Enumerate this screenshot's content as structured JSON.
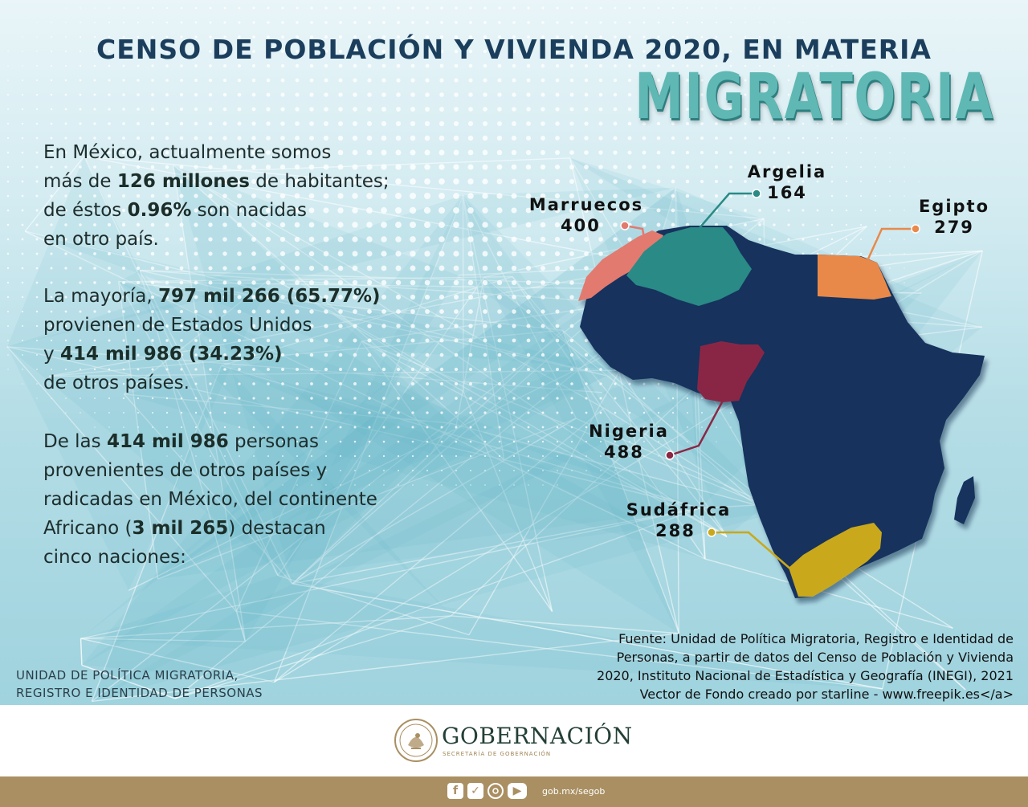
{
  "header": {
    "title": "CENSO DE POBLACIÓN Y VIVIENDA 2020, EN MATERIA",
    "title_highlight": "MIGRATORIA"
  },
  "paragraphs": [
    {
      "parts": [
        {
          "text": "En México",
          "bold": false
        },
        {
          "text": ", actualmente somos",
          "bold": false
        },
        {
          "text": "\nmás de ",
          "bold": false
        },
        {
          "text": "126 millones",
          "bold": true
        },
        {
          "text": " de habitantes;\nde éstos ",
          "bold": false
        },
        {
          "text": "0.96%",
          "bold": true
        },
        {
          "text": " son nacidas\nen otro país.",
          "bold": false
        }
      ]
    },
    {
      "parts": [
        {
          "text": "La mayoría, ",
          "bold": false
        },
        {
          "text": "797 mil 266 (65.77%)",
          "bold": true
        },
        {
          "text": "\nprovienen de Estados Unidos\n y ",
          "bold": false
        },
        {
          "text": "414 mil 986 (34.23%)",
          "bold": true
        },
        {
          "text": "\nde otros países.",
          "bold": false
        }
      ]
    },
    {
      "parts": [
        {
          "text": "De las ",
          "bold": false
        },
        {
          "text": "414 mil 986",
          "bold": true
        },
        {
          "text": " personas\nprovenientes de otros países y\nradicadas en México, del continente\nAfricano (",
          "bold": false
        },
        {
          "text": "3 mil 265",
          "bold": true
        },
        {
          "text": ") destacan\ncinco naciones:",
          "bold": false
        }
      ]
    }
  ],
  "map": {
    "countries": [
      {
        "key": "marruecos",
        "name": "Marruecos",
        "value": "400",
        "color": "#e27a6f"
      },
      {
        "key": "argelia",
        "name": "Argelia",
        "value": "164",
        "color": "#2a8a86"
      },
      {
        "key": "egipto",
        "name": "Egipto",
        "value": "279",
        "color": "#e8894a"
      },
      {
        "key": "nigeria",
        "name": "Nigeria",
        "value": "488",
        "color": "#8a2745"
      },
      {
        "key": "sudafrica",
        "name": "Sudáfrica",
        "value": "288",
        "color": "#c9a81b"
      }
    ],
    "continent_color": "#14335d"
  },
  "source": {
    "lines": [
      "Fuente: Unidad de Política Migratoria, Registro e Identidad de",
      "Personas, a partir de datos del Censo de Población y Vivienda",
      "2020, Instituto Nacional de Estadística y Geografía (INEGI), 2021",
      "Vector de Fondo creado por starline - www.freepik.es</a>"
    ]
  },
  "unit_name": {
    "lines": [
      "UNIDAD DE POLÍTICA MIGRATORIA,",
      "REGISTRO E IDENTIDAD DE PERSONAS"
    ]
  },
  "footer": {
    "brand": "GOBERNACIÓN",
    "brand_sub": "SECRETARÍA DE GOBERNACIÓN",
    "social_icons": [
      "facebook-icon",
      "twitter-icon",
      "instagram-icon",
      "youtube-icon"
    ],
    "site": "gob.mx/segob",
    "bar_color": "#a98f62"
  }
}
